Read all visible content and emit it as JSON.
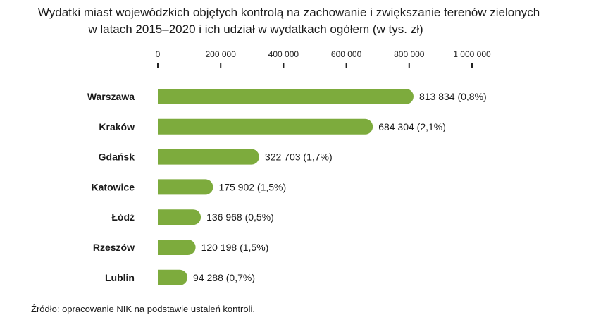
{
  "chart_data": {
    "type": "bar",
    "orientation": "horizontal",
    "title": "Wydatki miast wojewódzkich objętych kontrolą na zachowanie i zwiększanie terenów zielonych",
    "subtitle": "w latach 2015–2020 i ich udział w wydatkach ogółem (w tys. zł)",
    "categories": [
      "Warszawa",
      "Kraków",
      "Gdańsk",
      "Katowice",
      "Łódź",
      "Rzeszów",
      "Lublin"
    ],
    "values": [
      813834,
      684304,
      322703,
      175902,
      136968,
      120198,
      94288
    ],
    "shares": [
      "0,8%",
      "2,1%",
      "1,7%",
      "1,5%",
      "0,5%",
      "1,5%",
      "0,7%"
    ],
    "data_labels": [
      "813 834 (0,8%)",
      "684 304 (2,1%)",
      "322 703 (1,7%)",
      "175 902 (1,5%)",
      "136 968 (0,5%)",
      "120 198 (1,5%)",
      "94 288 (0,7%)"
    ],
    "xlim": [
      0,
      1000000
    ],
    "xticks": [
      0,
      200000,
      400000,
      600000,
      800000,
      1000000
    ],
    "xtick_labels": [
      "0",
      "200 000",
      "400 000",
      "600 000",
      "800 000",
      "1 000 000"
    ],
    "axis_position": "top",
    "grid": false,
    "bar_color": "#7dab3d",
    "source": "Źródło: opracowanie NIK na podstawie ustaleń kontroli."
  }
}
